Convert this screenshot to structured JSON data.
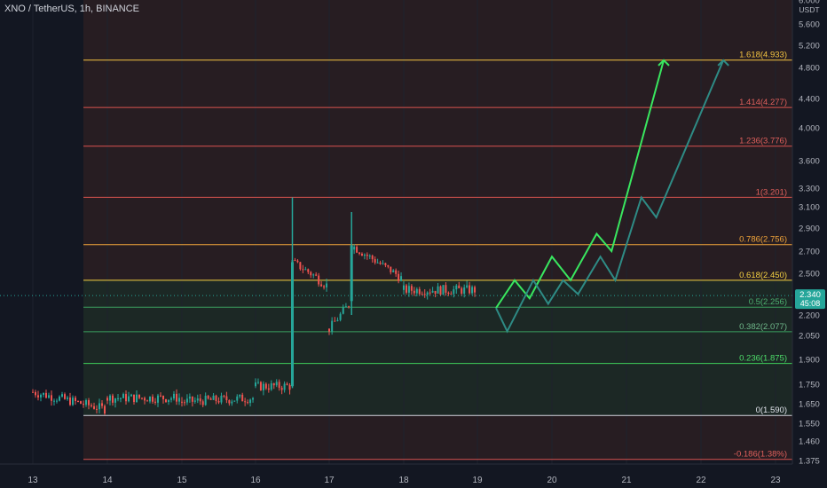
{
  "header": {
    "title": "XNO / TetherUS, 1h, BINANCE"
  },
  "colors": {
    "background": "#131722",
    "shade_green": "#1e2a26",
    "shade_red": "#2a1e22",
    "up_candle": "#26a69a",
    "down_candle": "#ef5350",
    "path_bright": "#39e75f",
    "path_dim": "#2e8b85",
    "price_badge": "#26a69a"
  },
  "chart_data": {
    "type": "candlestick",
    "y_axis": {
      "unit_label": "USDT",
      "ticks": [
        "6.000",
        "5.600",
        "5.200",
        "4.800",
        "4.400",
        "4.000",
        "3.600",
        "3.300",
        "3.100",
        "2.900",
        "2.700",
        "2.500",
        "2.200",
        "2.050",
        "1.900",
        "1.750",
        "1.650",
        "1.550",
        "1.460",
        "1.375"
      ]
    },
    "x_axis": {
      "ticks": [
        "13",
        "14",
        "15",
        "16",
        "17",
        "18",
        "19",
        "20",
        "21",
        "22",
        "23"
      ]
    },
    "current_price": {
      "value": "2.340",
      "countdown": "45:08"
    },
    "fib_levels": [
      {
        "label": "1.618(4.933)",
        "price": 4.933,
        "color": "#f5c542",
        "text_color": "#f5c542"
      },
      {
        "label": "1.414(4.277)",
        "price": 4.277,
        "color": "#d9534f",
        "text_color": "#e0605c"
      },
      {
        "label": "1.236(3.776)",
        "price": 3.776,
        "color": "#d9534f",
        "text_color": "#e0605c"
      },
      {
        "label": "1(3.201)",
        "price": 3.201,
        "color": "#d9534f",
        "text_color": "#e0605c"
      },
      {
        "label": "0.786(2.756)",
        "price": 2.756,
        "color": "#f0a43a",
        "text_color": "#f0a43a"
      },
      {
        "label": "0.618(2.450)",
        "price": 2.45,
        "color": "#f5d142",
        "text_color": "#f5d142"
      },
      {
        "label": "0.5(2.256)",
        "price": 2.256,
        "color": "#3a9e5f",
        "text_color": "#4caf6f"
      },
      {
        "label": "0.382(2.077)",
        "price": 2.077,
        "color": "#3a9e5f",
        "text_color": "#6fb88a"
      },
      {
        "label": "0.236(1.875)",
        "price": 1.875,
        "color": "#3ecf5a",
        "text_color": "#4ede6a"
      },
      {
        "label": "0(1.590)",
        "price": 1.59,
        "color": "#d1d4dc",
        "text_color": "#e0e3eb"
      },
      {
        "label": "-0.186(1.38%)",
        "price": 1.38,
        "color": "#d9534f",
        "text_color": "#e0605c"
      }
    ],
    "candles_by_day": [
      {
        "day": "13",
        "open": 1.72,
        "close": 1.71,
        "high": 1.78,
        "low": 1.69
      },
      {
        "day": "14",
        "open": 1.62,
        "close": 1.68,
        "high": 1.71,
        "low": 1.6
      },
      {
        "day": "15",
        "open": 1.68,
        "close": 1.66,
        "high": 1.71,
        "low": 1.64
      },
      {
        "day": "16",
        "open": 1.68,
        "close": 1.74,
        "high": 1.77,
        "low": 1.67
      },
      {
        "day": "16.5",
        "open": 1.74,
        "close": 2.6,
        "high": 3.2,
        "low": 1.73
      },
      {
        "day": "17",
        "open": 2.4,
        "close": 2.1,
        "high": 2.45,
        "low": 2.05
      },
      {
        "day": "17.3",
        "open": 2.3,
        "close": 2.75,
        "high": 3.05,
        "low": 2.2
      },
      {
        "day": "18",
        "open": 2.45,
        "close": 2.38,
        "high": 2.6,
        "low": 2.3
      },
      {
        "day": "19",
        "open": 2.38,
        "close": 2.34,
        "high": 2.5,
        "low": 2.3
      }
    ],
    "projections": [
      {
        "name": "bright",
        "points": [
          [
            "19.25",
            2.25
          ],
          [
            "19.5",
            2.45
          ],
          [
            "19.7",
            2.32
          ],
          [
            "20",
            2.65
          ],
          [
            "20.25",
            2.45
          ],
          [
            "20.6",
            2.85
          ],
          [
            "20.8",
            2.7
          ],
          [
            "21.5",
            4.93
          ]
        ]
      },
      {
        "name": "dim",
        "points": [
          [
            "19.25",
            2.25
          ],
          [
            "19.4",
            2.08
          ],
          [
            "19.75",
            2.45
          ],
          [
            "19.95",
            2.28
          ],
          [
            "20.15",
            2.45
          ],
          [
            "20.35",
            2.35
          ],
          [
            "20.65",
            2.65
          ],
          [
            "20.85",
            2.45
          ],
          [
            "21.2",
            3.2
          ],
          [
            "21.4",
            3.0
          ],
          [
            "22.3",
            4.93
          ]
        ]
      }
    ]
  }
}
